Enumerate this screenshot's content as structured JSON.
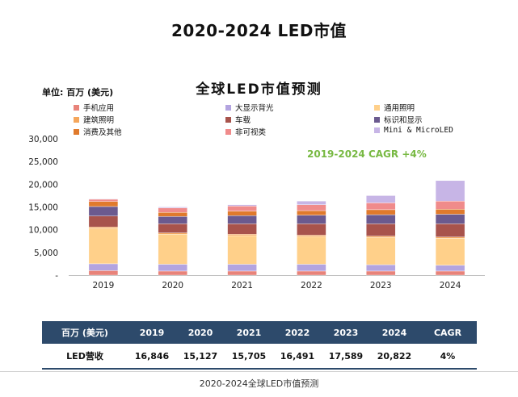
{
  "page": {
    "title": "2020-2024 LED市值",
    "caption": "2020-2024全球LED市值预测"
  },
  "chart_data": {
    "type": "bar",
    "stacked": true,
    "title": "全球LED市值预测",
    "unit_label": "单位: 百万 (美元)",
    "annotation": "2019-2024 CAGR +4%",
    "categories": [
      "2019",
      "2020",
      "2021",
      "2022",
      "2023",
      "2024"
    ],
    "ylim": [
      0,
      30000
    ],
    "yticks": [
      0,
      5000,
      10000,
      15000,
      20000,
      25000,
      30000
    ],
    "ytick_labels": [
      "-",
      "5,000",
      "10,000",
      "15,000",
      "20,000",
      "25,000",
      "30,000"
    ],
    "series": [
      {
        "name": "手机应用",
        "color": "#e8837a",
        "values": [
          1000,
          900,
          900,
          900,
          900,
          900
        ]
      },
      {
        "name": "大显示背光",
        "color": "#b3a4e0",
        "values": [
          1500,
          1500,
          1500,
          1500,
          1400,
          1300
        ]
      },
      {
        "name": "通用照明",
        "color": "#ffd08a",
        "values": [
          7800,
          6600,
          6300,
          6100,
          6000,
          5900
        ]
      },
      {
        "name": "建筑照明",
        "color": "#f5a65b",
        "values": [
          300,
          300,
          300,
          300,
          300,
          300
        ]
      },
      {
        "name": "车载",
        "color": "#a8534c",
        "values": [
          2400,
          2000,
          2300,
          2500,
          2700,
          2900
        ]
      },
      {
        "name": "标识和显示",
        "color": "#6b5a8f",
        "values": [
          2100,
          1600,
          1800,
          1900,
          2000,
          2100
        ]
      },
      {
        "name": "消费及其他",
        "color": "#e07a2c",
        "values": [
          1100,
          900,
          1000,
          1000,
          1100,
          1100
        ]
      },
      {
        "name": "非可视类",
        "color": "#f08b8b",
        "values": [
          500,
          1000,
          1100,
          1300,
          1500,
          1800
        ]
      },
      {
        "name": "Mini & MicroLED",
        "color": "#c7b5e6",
        "values": [
          100,
          200,
          300,
          800,
          1600,
          4500
        ]
      }
    ],
    "legend": [
      {
        "label": "手机应用",
        "color": "#e8837a"
      },
      {
        "label": "大显示背光",
        "color": "#b3a4e0"
      },
      {
        "label": "通用照明",
        "color": "#ffd08a"
      },
      {
        "label": "建筑照明",
        "color": "#f5a65b"
      },
      {
        "label": "车载",
        "color": "#a8534c"
      },
      {
        "label": "标识和显示",
        "color": "#6b5a8f"
      },
      {
        "label": "消费及其他",
        "color": "#e07a2c"
      },
      {
        "label": "非可视类",
        "color": "#f08b8b"
      },
      {
        "label": "Mini & MicroLED",
        "color": "#c7b5e6"
      }
    ]
  },
  "table": {
    "header": [
      "百万 (美元)",
      "2019",
      "2020",
      "2021",
      "2022",
      "2023",
      "2024",
      "CAGR"
    ],
    "row": [
      "LED营收",
      "16,846",
      "15,127",
      "15,705",
      "16,491",
      "17,589",
      "20,822",
      "4%"
    ],
    "header_color": "#2d4a6b"
  }
}
